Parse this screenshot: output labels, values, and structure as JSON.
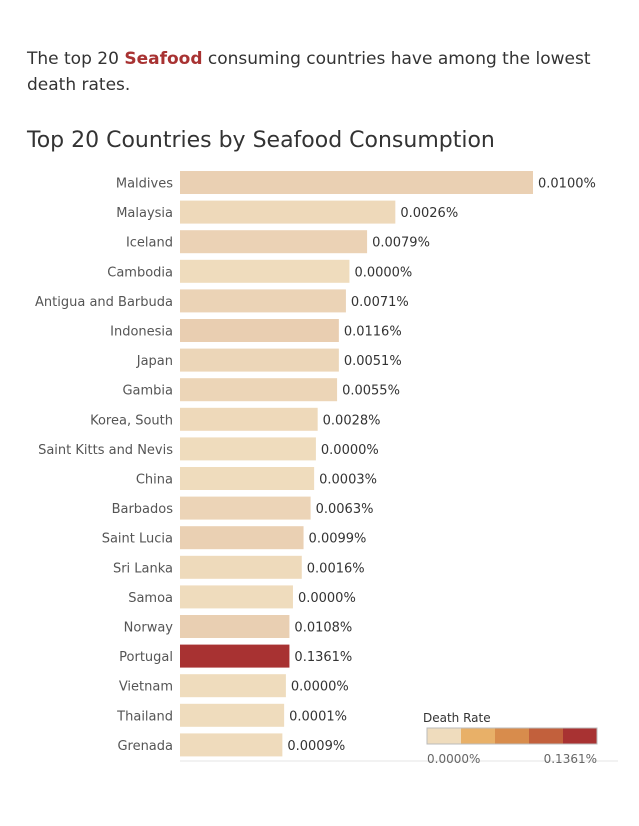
{
  "headline": {
    "prefix": "The top 20 ",
    "highlight": "Seafood",
    "suffix": " consuming countries have among the lowest death rates."
  },
  "colors": {
    "highlight": "#a83232",
    "bar_low": "#efdcbd",
    "bar_high": "#a83232",
    "legend_swatches": [
      "#efdcbd",
      "#e8b068",
      "#d88c4c",
      "#c2603c",
      "#a83232"
    ]
  },
  "chart_data": {
    "type": "bar",
    "orientation": "horizontal",
    "title": "Top 20 Countries by Seafood Consumption",
    "categories": [
      "Maldives",
      "Malaysia",
      "Iceland",
      "Cambodia",
      "Antigua and Barbuda",
      "Indonesia",
      "Japan",
      "Gambia",
      "Korea, South",
      "Saint Kitts and Nevis",
      "China",
      "Barbados",
      "Saint Lucia",
      "Sri Lanka",
      "Samoa",
      "Norway",
      "Portugal",
      "Vietnam",
      "Thailand",
      "Grenada"
    ],
    "relative_consumption": [
      1.0,
      0.61,
      0.53,
      0.48,
      0.47,
      0.45,
      0.45,
      0.445,
      0.39,
      0.385,
      0.38,
      0.37,
      0.35,
      0.345,
      0.32,
      0.31,
      0.31,
      0.3,
      0.295,
      0.29
    ],
    "death_rate_labels": [
      "0.0100%",
      "0.0026%",
      "0.0079%",
      "0.0000%",
      "0.0071%",
      "0.0116%",
      "0.0051%",
      "0.0055%",
      "0.0028%",
      "0.0000%",
      "0.0003%",
      "0.0063%",
      "0.0099%",
      "0.0016%",
      "0.0000%",
      "0.0108%",
      "0.1361%",
      "0.0000%",
      "0.0001%",
      "0.0009%"
    ],
    "death_rate_values": [
      0.01,
      0.0026,
      0.0079,
      0.0,
      0.0071,
      0.0116,
      0.0051,
      0.0055,
      0.0028,
      0.0,
      0.0003,
      0.0063,
      0.0099,
      0.0016,
      0.0,
      0.0108,
      0.1361,
      0.0,
      0.0001,
      0.0009
    ],
    "legend": {
      "title": "Death Rate",
      "min_label": "0.0000%",
      "max_label": "0.1361%",
      "min": 0.0,
      "max": 0.1361,
      "placement": "bottom-right"
    }
  }
}
